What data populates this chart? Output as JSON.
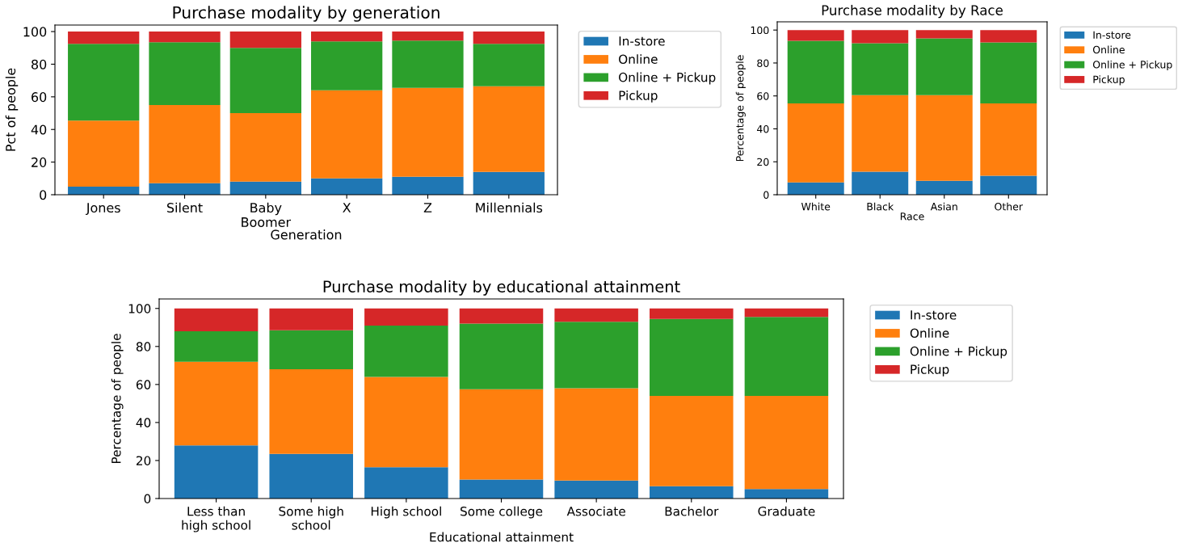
{
  "chart_data": [
    {
      "type": "bar",
      "title": "Purchase modality by generation",
      "xlabel": "Generation",
      "ylabel": "Pct of people",
      "stacked": true,
      "legend": "right",
      "grid": false,
      "categories": [
        "Jones",
        "Silent",
        "Baby\nBoomer",
        "X",
        "Z",
        "Millennials"
      ],
      "ylim": [
        0,
        104
      ],
      "yticks": [
        0,
        20,
        40,
        60,
        80,
        100
      ],
      "series": [
        {
          "name": "In-store",
          "color": "#1f77b4",
          "values": [
            5,
            7,
            8,
            10,
            11,
            14
          ]
        },
        {
          "name": "Online",
          "color": "#ff7f0e",
          "values": [
            40.5,
            48,
            42,
            54,
            54.5,
            52.5
          ]
        },
        {
          "name": "Online + Pickup",
          "color": "#2ca02c",
          "values": [
            47,
            38.5,
            40,
            30,
            29,
            26
          ]
        },
        {
          "name": "Pickup",
          "color": "#d62728",
          "values": [
            7.5,
            6.5,
            10,
            6,
            5.5,
            7.5
          ]
        }
      ]
    },
    {
      "type": "bar",
      "title": "Purchase modality by Race",
      "xlabel": "Race",
      "ylabel": "Percentage of people",
      "stacked": true,
      "legend": "right",
      "grid": false,
      "categories": [
        "White",
        "Black",
        "Asian",
        "Other"
      ],
      "ylim": [
        0,
        105
      ],
      "yticks": [
        0,
        20,
        40,
        60,
        80,
        100
      ],
      "series": [
        {
          "name": "In-store",
          "color": "#1f77b4",
          "values": [
            7.5,
            14,
            8.5,
            11.5
          ]
        },
        {
          "name": "Online",
          "color": "#ff7f0e",
          "values": [
            48,
            46.5,
            52,
            44
          ]
        },
        {
          "name": "Online + Pickup",
          "color": "#2ca02c",
          "values": [
            38,
            31.5,
            34.5,
            37
          ]
        },
        {
          "name": "Pickup",
          "color": "#d62728",
          "values": [
            6.5,
            8,
            5,
            7.5
          ]
        }
      ]
    },
    {
      "type": "bar",
      "title": "Purchase modality by educational attainment",
      "xlabel": "Educational attainment",
      "ylabel": "Percentage of people",
      "stacked": true,
      "legend": "right",
      "grid": false,
      "categories": [
        "Less than\nhigh school",
        "Some high\nschool",
        "High school",
        "Some college",
        "Associate",
        "Bachelor",
        "Graduate"
      ],
      "ylim": [
        0,
        105
      ],
      "yticks": [
        0,
        20,
        40,
        60,
        80,
        100
      ],
      "series": [
        {
          "name": "In-store",
          "color": "#1f77b4",
          "values": [
            28,
            23.5,
            16.5,
            10,
            9.5,
            6.5,
            5
          ]
        },
        {
          "name": "Online",
          "color": "#ff7f0e",
          "values": [
            44,
            44.5,
            47.5,
            47.5,
            48.5,
            47.5,
            49
          ]
        },
        {
          "name": "Online + Pickup",
          "color": "#2ca02c",
          "values": [
            16,
            20.5,
            27,
            34.5,
            35,
            40.5,
            41.5
          ]
        },
        {
          "name": "Pickup",
          "color": "#d62728",
          "values": [
            12,
            11.5,
            9,
            8,
            7,
            5.5,
            4.5
          ]
        }
      ]
    }
  ]
}
